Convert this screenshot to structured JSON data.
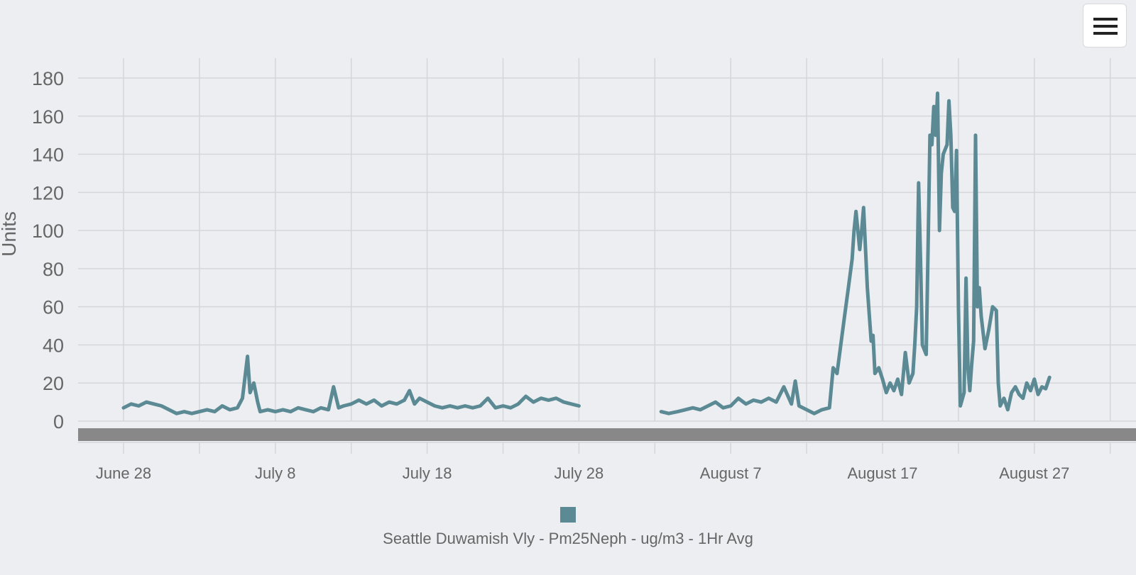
{
  "ui": {
    "menu_icon": "hamburger-menu-icon"
  },
  "colors": {
    "background": "#eceef2",
    "series": "#5b8a94",
    "grid": "#d4d6da",
    "tick_label": "#666666",
    "axis_label": "#666666",
    "scrollbar": "#888888"
  },
  "chart_data": {
    "type": "line",
    "title": "",
    "xlabel": "",
    "ylabel": "Units",
    "ylim": [
      0,
      180
    ],
    "yticks": [
      0,
      20,
      40,
      60,
      80,
      100,
      120,
      140,
      160,
      180
    ],
    "xlim": [
      "2017-06-28",
      "2017-09-01"
    ],
    "xgrid_dates": [
      "2017-06-28",
      "2017-07-03",
      "2017-07-08",
      "2017-07-13",
      "2017-07-18",
      "2017-07-23",
      "2017-07-28",
      "2017-08-02",
      "2017-08-07",
      "2017-08-12",
      "2017-08-17",
      "2017-08-22",
      "2017-08-27",
      "2017-09-01"
    ],
    "xticks": [
      {
        "date": "2017-06-28",
        "label": "June 28"
      },
      {
        "date": "2017-07-08",
        "label": "July 8"
      },
      {
        "date": "2017-07-18",
        "label": "July 18"
      },
      {
        "date": "2017-07-28",
        "label": "July 28"
      },
      {
        "date": "2017-08-07",
        "label": "August 7"
      },
      {
        "date": "2017-08-17",
        "label": "August 17"
      },
      {
        "date": "2017-08-27",
        "label": "August 27"
      }
    ],
    "grid": true,
    "legend_position": "bottom-center",
    "series": [
      {
        "name": "Seattle Duwamish Vly - Pm25Neph - ug/m3 - 1Hr Avg",
        "segments": [
          [
            [
              "2017-06-28",
              7
            ],
            [
              "2017-06-28 12:00",
              9
            ],
            [
              "2017-06-29",
              8
            ],
            [
              "2017-06-29 12:00",
              10
            ],
            [
              "2017-06-30",
              9
            ],
            [
              "2017-06-30 12:00",
              8
            ],
            [
              "2017-07-01",
              6
            ],
            [
              "2017-07-01 12:00",
              4
            ],
            [
              "2017-07-02",
              5
            ],
            [
              "2017-07-02 12:00",
              4
            ],
            [
              "2017-07-03",
              5
            ],
            [
              "2017-07-03 12:00",
              6
            ],
            [
              "2017-07-04",
              5
            ],
            [
              "2017-07-04 12:00",
              8
            ],
            [
              "2017-07-05",
              6
            ],
            [
              "2017-07-05 12:00",
              7
            ],
            [
              "2017-07-05 20:00",
              12
            ],
            [
              "2017-07-06 04:00",
              34
            ],
            [
              "2017-07-06 08:00",
              15
            ],
            [
              "2017-07-06 14:00",
              20
            ],
            [
              "2017-07-06 20:00",
              10
            ],
            [
              "2017-07-07",
              5
            ],
            [
              "2017-07-07 12:00",
              6
            ],
            [
              "2017-07-08",
              5
            ],
            [
              "2017-07-08 12:00",
              6
            ],
            [
              "2017-07-09",
              5
            ],
            [
              "2017-07-09 12:00",
              7
            ],
            [
              "2017-07-10",
              6
            ],
            [
              "2017-07-10 12:00",
              5
            ],
            [
              "2017-07-11",
              7
            ],
            [
              "2017-07-11 12:00",
              6
            ],
            [
              "2017-07-11 20:00",
              18
            ],
            [
              "2017-07-12 04:00",
              7
            ],
            [
              "2017-07-12 12:00",
              8
            ],
            [
              "2017-07-13",
              9
            ],
            [
              "2017-07-13 12:00",
              11
            ],
            [
              "2017-07-14",
              9
            ],
            [
              "2017-07-14 12:00",
              11
            ],
            [
              "2017-07-15",
              8
            ],
            [
              "2017-07-15 12:00",
              10
            ],
            [
              "2017-07-16",
              9
            ],
            [
              "2017-07-16 12:00",
              11
            ],
            [
              "2017-07-16 20:00",
              16
            ],
            [
              "2017-07-17 04:00",
              9
            ],
            [
              "2017-07-17 12:00",
              12
            ],
            [
              "2017-07-18",
              10
            ],
            [
              "2017-07-18 12:00",
              8
            ],
            [
              "2017-07-19",
              7
            ],
            [
              "2017-07-19 12:00",
              8
            ],
            [
              "2017-07-20",
              7
            ],
            [
              "2017-07-20 12:00",
              8
            ],
            [
              "2017-07-21",
              7
            ],
            [
              "2017-07-21 12:00",
              8
            ],
            [
              "2017-07-22",
              12
            ],
            [
              "2017-07-22 12:00",
              7
            ],
            [
              "2017-07-23",
              8
            ],
            [
              "2017-07-23 12:00",
              7
            ],
            [
              "2017-07-24",
              9
            ],
            [
              "2017-07-24 12:00",
              13
            ],
            [
              "2017-07-25",
              10
            ],
            [
              "2017-07-25 12:00",
              12
            ],
            [
              "2017-07-26",
              11
            ],
            [
              "2017-07-26 12:00",
              12
            ],
            [
              "2017-07-27",
              10
            ],
            [
              "2017-07-27 12:00",
              9
            ],
            [
              "2017-07-28",
              8
            ]
          ],
          [
            [
              "2017-08-02 10:00",
              5
            ],
            [
              "2017-08-02 22:00",
              4
            ],
            [
              "2017-08-03 12:00",
              5
            ],
            [
              "2017-08-04",
              6
            ],
            [
              "2017-08-04 12:00",
              7
            ],
            [
              "2017-08-05",
              6
            ],
            [
              "2017-08-05 12:00",
              8
            ],
            [
              "2017-08-06",
              10
            ],
            [
              "2017-08-06 12:00",
              7
            ],
            [
              "2017-08-07",
              8
            ],
            [
              "2017-08-07 12:00",
              12
            ],
            [
              "2017-08-08",
              9
            ],
            [
              "2017-08-08 12:00",
              11
            ],
            [
              "2017-08-09",
              10
            ],
            [
              "2017-08-09 12:00",
              12
            ],
            [
              "2017-08-10",
              10
            ],
            [
              "2017-08-10 12:00",
              18
            ],
            [
              "2017-08-11",
              9
            ],
            [
              "2017-08-11 06:00",
              21
            ],
            [
              "2017-08-11 12:00",
              8
            ],
            [
              "2017-08-12",
              6
            ],
            [
              "2017-08-12 12:00",
              4
            ],
            [
              "2017-08-13",
              6
            ],
            [
              "2017-08-13 12:00",
              7
            ],
            [
              "2017-08-13 18:00",
              28
            ],
            [
              "2017-08-14",
              25
            ],
            [
              "2017-08-14 06:00",
              40
            ],
            [
              "2017-08-14 12:00",
              55
            ],
            [
              "2017-08-14 18:00",
              70
            ],
            [
              "2017-08-15",
              85
            ],
            [
              "2017-08-15 03:00",
              100
            ],
            [
              "2017-08-15 06:00",
              110
            ],
            [
              "2017-08-15 12:00",
              90
            ],
            [
              "2017-08-15 15:00",
              100
            ],
            [
              "2017-08-15 18:00",
              112
            ],
            [
              "2017-08-16",
              70
            ],
            [
              "2017-08-16 06:00",
              42
            ],
            [
              "2017-08-16 09:00",
              45
            ],
            [
              "2017-08-16 12:00",
              25
            ],
            [
              "2017-08-16 18:00",
              28
            ],
            [
              "2017-08-17",
              22
            ],
            [
              "2017-08-17 06:00",
              15
            ],
            [
              "2017-08-17 12:00",
              20
            ],
            [
              "2017-08-17 18:00",
              16
            ],
            [
              "2017-08-18",
              22
            ],
            [
              "2017-08-18 06:00",
              14
            ],
            [
              "2017-08-18 12:00",
              36
            ],
            [
              "2017-08-18 18:00",
              20
            ],
            [
              "2017-08-19",
              25
            ],
            [
              "2017-08-19 03:00",
              40
            ],
            [
              "2017-08-19 06:00",
              60
            ],
            [
              "2017-08-19 09:00",
              125
            ],
            [
              "2017-08-19 12:00",
              85
            ],
            [
              "2017-08-19 15:00",
              40
            ],
            [
              "2017-08-19 21:00",
              35
            ],
            [
              "2017-08-20",
              90
            ],
            [
              "2017-08-20 03:00",
              150
            ],
            [
              "2017-08-20 06:00",
              145
            ],
            [
              "2017-08-20 09:00",
              165
            ],
            [
              "2017-08-20 12:00",
              150
            ],
            [
              "2017-08-20 15:00",
              172
            ],
            [
              "2017-08-20 18:00",
              100
            ],
            [
              "2017-08-20 21:00",
              130
            ],
            [
              "2017-08-21",
              140
            ],
            [
              "2017-08-21 06:00",
              145
            ],
            [
              "2017-08-21 09:00",
              168
            ],
            [
              "2017-08-21 12:00",
              150
            ],
            [
              "2017-08-21 15:00",
              112
            ],
            [
              "2017-08-21 18:00",
              110
            ],
            [
              "2017-08-21 21:00",
              142
            ],
            [
              "2017-08-22",
              60
            ],
            [
              "2017-08-22 03:00",
              8
            ],
            [
              "2017-08-22 09:00",
              15
            ],
            [
              "2017-08-22 12:00",
              75
            ],
            [
              "2017-08-22 15:00",
              28
            ],
            [
              "2017-08-22 18:00",
              16
            ],
            [
              "2017-08-22 21:00",
              30
            ],
            [
              "2017-08-23",
              42
            ],
            [
              "2017-08-23 03:00",
              150
            ],
            [
              "2017-08-23 06:00",
              60
            ],
            [
              "2017-08-23 09:00",
              70
            ],
            [
              "2017-08-23 12:00",
              55
            ],
            [
              "2017-08-23 18:00",
              38
            ],
            [
              "2017-08-24",
              48
            ],
            [
              "2017-08-24 06:00",
              60
            ],
            [
              "2017-08-24 12:00",
              58
            ],
            [
              "2017-08-24 15:00",
              20
            ],
            [
              "2017-08-24 18:00",
              8
            ],
            [
              "2017-08-25",
              12
            ],
            [
              "2017-08-25 06:00",
              6
            ],
            [
              "2017-08-25 12:00",
              15
            ],
            [
              "2017-08-25 18:00",
              18
            ],
            [
              "2017-08-26",
              14
            ],
            [
              "2017-08-26 06:00",
              12
            ],
            [
              "2017-08-26 12:00",
              20
            ],
            [
              "2017-08-26 18:00",
              16
            ],
            [
              "2017-08-27",
              22
            ],
            [
              "2017-08-27 06:00",
              14
            ],
            [
              "2017-08-27 12:00",
              18
            ],
            [
              "2017-08-27 18:00",
              17
            ],
            [
              "2017-08-28",
              23
            ]
          ]
        ]
      }
    ]
  }
}
